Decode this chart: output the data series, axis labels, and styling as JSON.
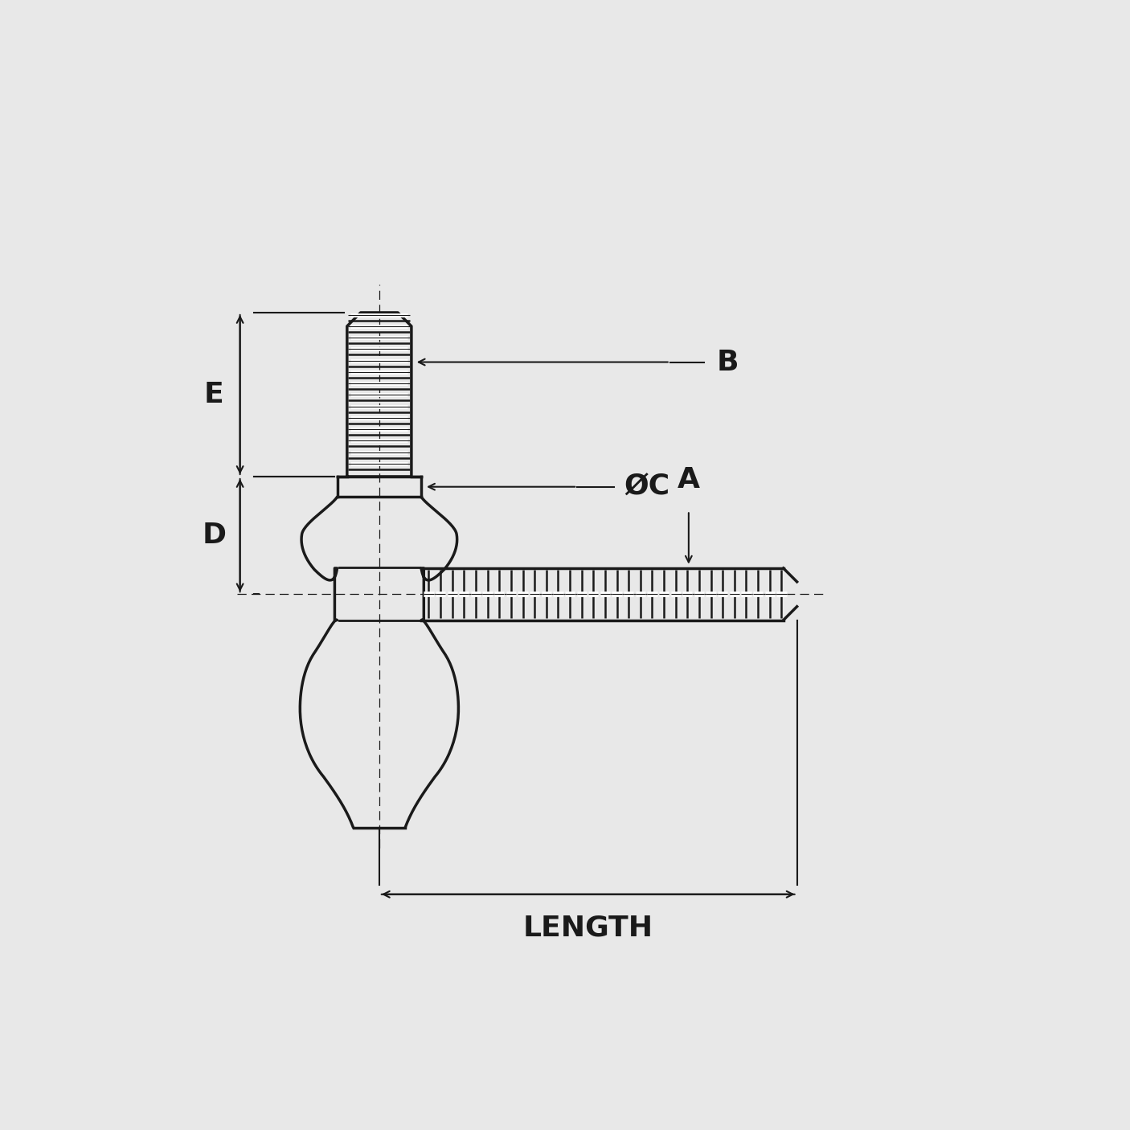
{
  "bg_color": "#e8e8e8",
  "line_color": "#1a1a1a",
  "lw": 2.5,
  "tlw": 1.5,
  "label_E": "E",
  "label_D": "D",
  "label_B": "B",
  "label_OC": "ØC",
  "label_A": "A",
  "label_LENGTH": "LENGTH",
  "font_size": 26
}
